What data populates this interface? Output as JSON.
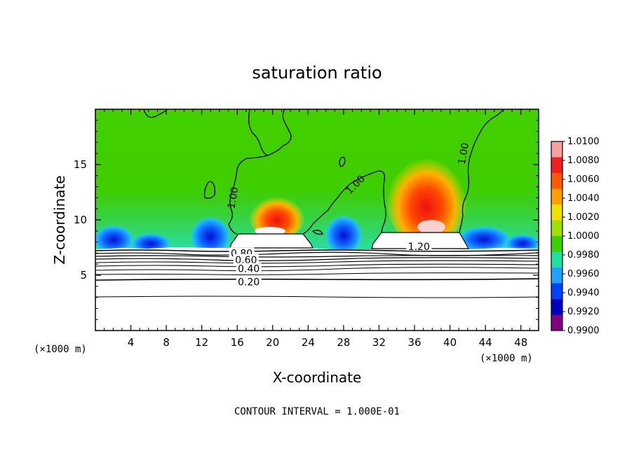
{
  "chart_data": {
    "type": "heatmap",
    "title": "saturation ratio",
    "xlabel": "X-coordinate",
    "ylabel": "Z-coordinate",
    "x_unit": "(×1000 m)",
    "x_ticks": [
      4,
      8,
      12,
      16,
      20,
      24,
      28,
      32,
      36,
      40,
      44,
      48
    ],
    "y_ticks": [
      5,
      10,
      15
    ],
    "xlim": [
      0,
      50
    ],
    "ylim": [
      0,
      20
    ],
    "footer": "CONTOUR INTERVAL = 1.000E-01",
    "colorbar": {
      "ticks": [
        "1.0100",
        "1.0080",
        "1.0060",
        "1.0040",
        "1.0020",
        "1.0000",
        "0.9980",
        "0.9960",
        "0.9940",
        "0.9920",
        "0.9900"
      ],
      "colors": [
        "#f7a0a0",
        "#ef2020",
        "#ff5a00",
        "#ffa000",
        "#f0e000",
        "#9ee000",
        "#3cd000",
        "#20e0a0",
        "#20a0ff",
        "#0040ff",
        "#0000c0",
        "#800080"
      ]
    },
    "contour_labels": [
      {
        "text": "1.00",
        "x": 15.5,
        "z": 12.0,
        "rotate": -80
      },
      {
        "text": "1.00",
        "x": 29.3,
        "z": 13.2,
        "rotate": -45
      },
      {
        "text": "1.00",
        "x": 41.5,
        "z": 16.0,
        "rotate": -80
      },
      {
        "text": "1.20",
        "x": 36.5,
        "z": 7.6,
        "rotate": 0
      },
      {
        "text": "0.80",
        "x": 16.5,
        "z": 7.0,
        "rotate": 0
      },
      {
        "text": "0.60",
        "x": 17.0,
        "z": 6.4,
        "rotate": 0
      },
      {
        "text": "0.40",
        "x": 17.3,
        "z": 5.6,
        "rotate": 0
      },
      {
        "text": "0.20",
        "x": 17.3,
        "z": 4.4,
        "rotate": 0
      }
    ],
    "grid": false
  }
}
